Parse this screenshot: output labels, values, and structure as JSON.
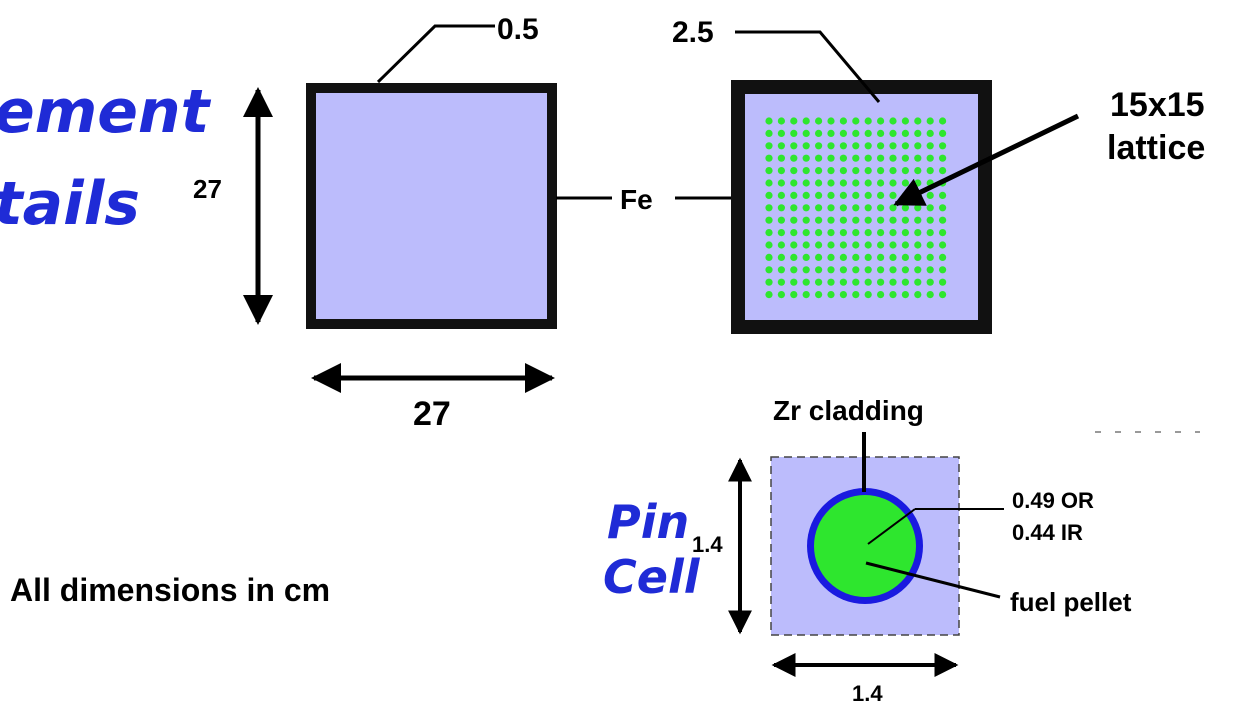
{
  "title_fragments": {
    "line1": "ement",
    "line2": "tails"
  },
  "labels": {
    "wall_thin": "0.5",
    "wall_thick": "2.5",
    "height": "27",
    "width": "27",
    "material": "Fe",
    "lattice_line1": "15x15",
    "lattice_line2": "lattice",
    "cladding": "Zr cladding",
    "outer_radius": "0.49 OR",
    "inner_radius": "0.44 IR",
    "pellet": "fuel pellet",
    "pin_height": "1.4",
    "pin_width": "1.4",
    "pin_cell_line1": "Pin",
    "pin_cell_line2": "Cell",
    "units_note": "All dimensions in cm"
  },
  "lattice": {
    "rows": 15,
    "cols": 15
  },
  "colors": {
    "title_blue": "#1f2bd6",
    "coolant": "#bcbcfc",
    "pellet": "#2ee62e",
    "cladding": "#1a1ae0",
    "wall": "#111111"
  }
}
